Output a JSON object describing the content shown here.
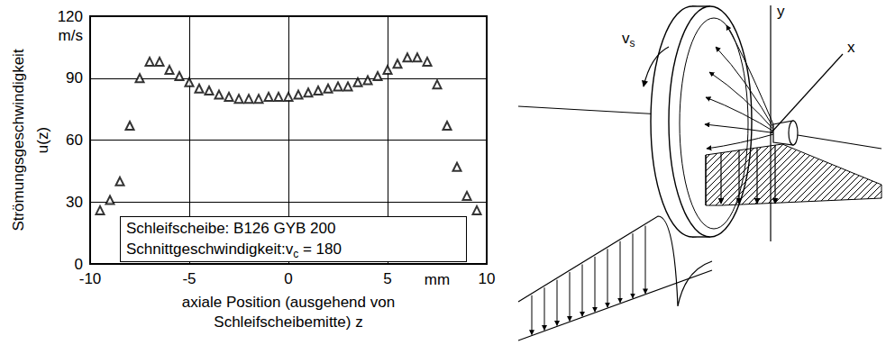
{
  "chart_data": {
    "type": "scatter",
    "ylabel": "Strömungsgeschwindigkeit u(z)",
    "y_unit": "m/s",
    "xlabel": "axiale Position (ausgehend von Schleifscheibemitte) z",
    "x_unit": "mm",
    "annotations": [
      {
        "text": "Schleifscheibe:  B126 GYB 200"
      },
      {
        "text": "Schnittgeschwindigkeit:v",
        "sub": "c",
        "tail": " = 180"
      }
    ],
    "x": [
      -9.5,
      -9,
      -8.5,
      -8,
      -7.5,
      -7,
      -6.5,
      -6,
      -5.5,
      -5,
      -4.5,
      -4,
      -3.5,
      -3,
      -2.5,
      -2,
      -1.5,
      -1,
      -0.5,
      0,
      0.5,
      1,
      1.5,
      2,
      2.5,
      3,
      3.5,
      4,
      4.5,
      5,
      5.5,
      6,
      6.5,
      7,
      7.5,
      8,
      8.5,
      9,
      9.5
    ],
    "values": [
      26,
      31,
      40,
      67,
      90,
      98,
      98,
      94,
      91,
      88,
      85,
      84,
      82,
      81,
      80,
      80,
      80,
      81,
      81,
      81,
      82,
      83,
      84,
      85,
      86,
      86,
      88,
      89,
      91,
      94,
      97,
      100,
      100,
      98,
      87,
      67,
      47,
      33,
      26
    ],
    "color": "#000000",
    "marker": "triangle",
    "xlim": [
      -10,
      10
    ],
    "xticks": [
      -10,
      -5,
      0,
      5,
      10
    ],
    "ylim": [
      0,
      120
    ],
    "yticks": [
      0,
      30,
      60,
      90,
      120
    ],
    "grid": true
  },
  "diagram": {
    "labels": [
      {
        "text": "v",
        "sub": "s"
      },
      {
        "text": "y"
      },
      {
        "text": "x"
      }
    ]
  }
}
